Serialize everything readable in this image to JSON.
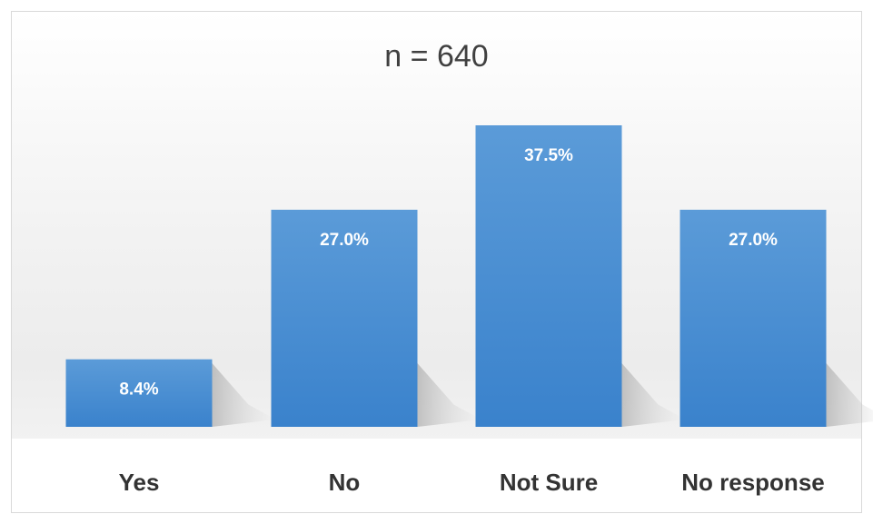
{
  "chart_data": {
    "type": "bar",
    "title": "n = 640",
    "categories": [
      "Yes",
      "No",
      "Not Sure",
      "No response"
    ],
    "values": [
      8.4,
      27.0,
      37.5,
      27.0
    ],
    "value_labels": [
      "8.4%",
      "27.0%",
      "37.5%",
      "27.0%"
    ],
    "xlabel": "",
    "ylabel": "",
    "ylim": [
      0,
      37.5
    ],
    "grid": false,
    "legend": "none",
    "bar_color": "#4a8fd4"
  }
}
